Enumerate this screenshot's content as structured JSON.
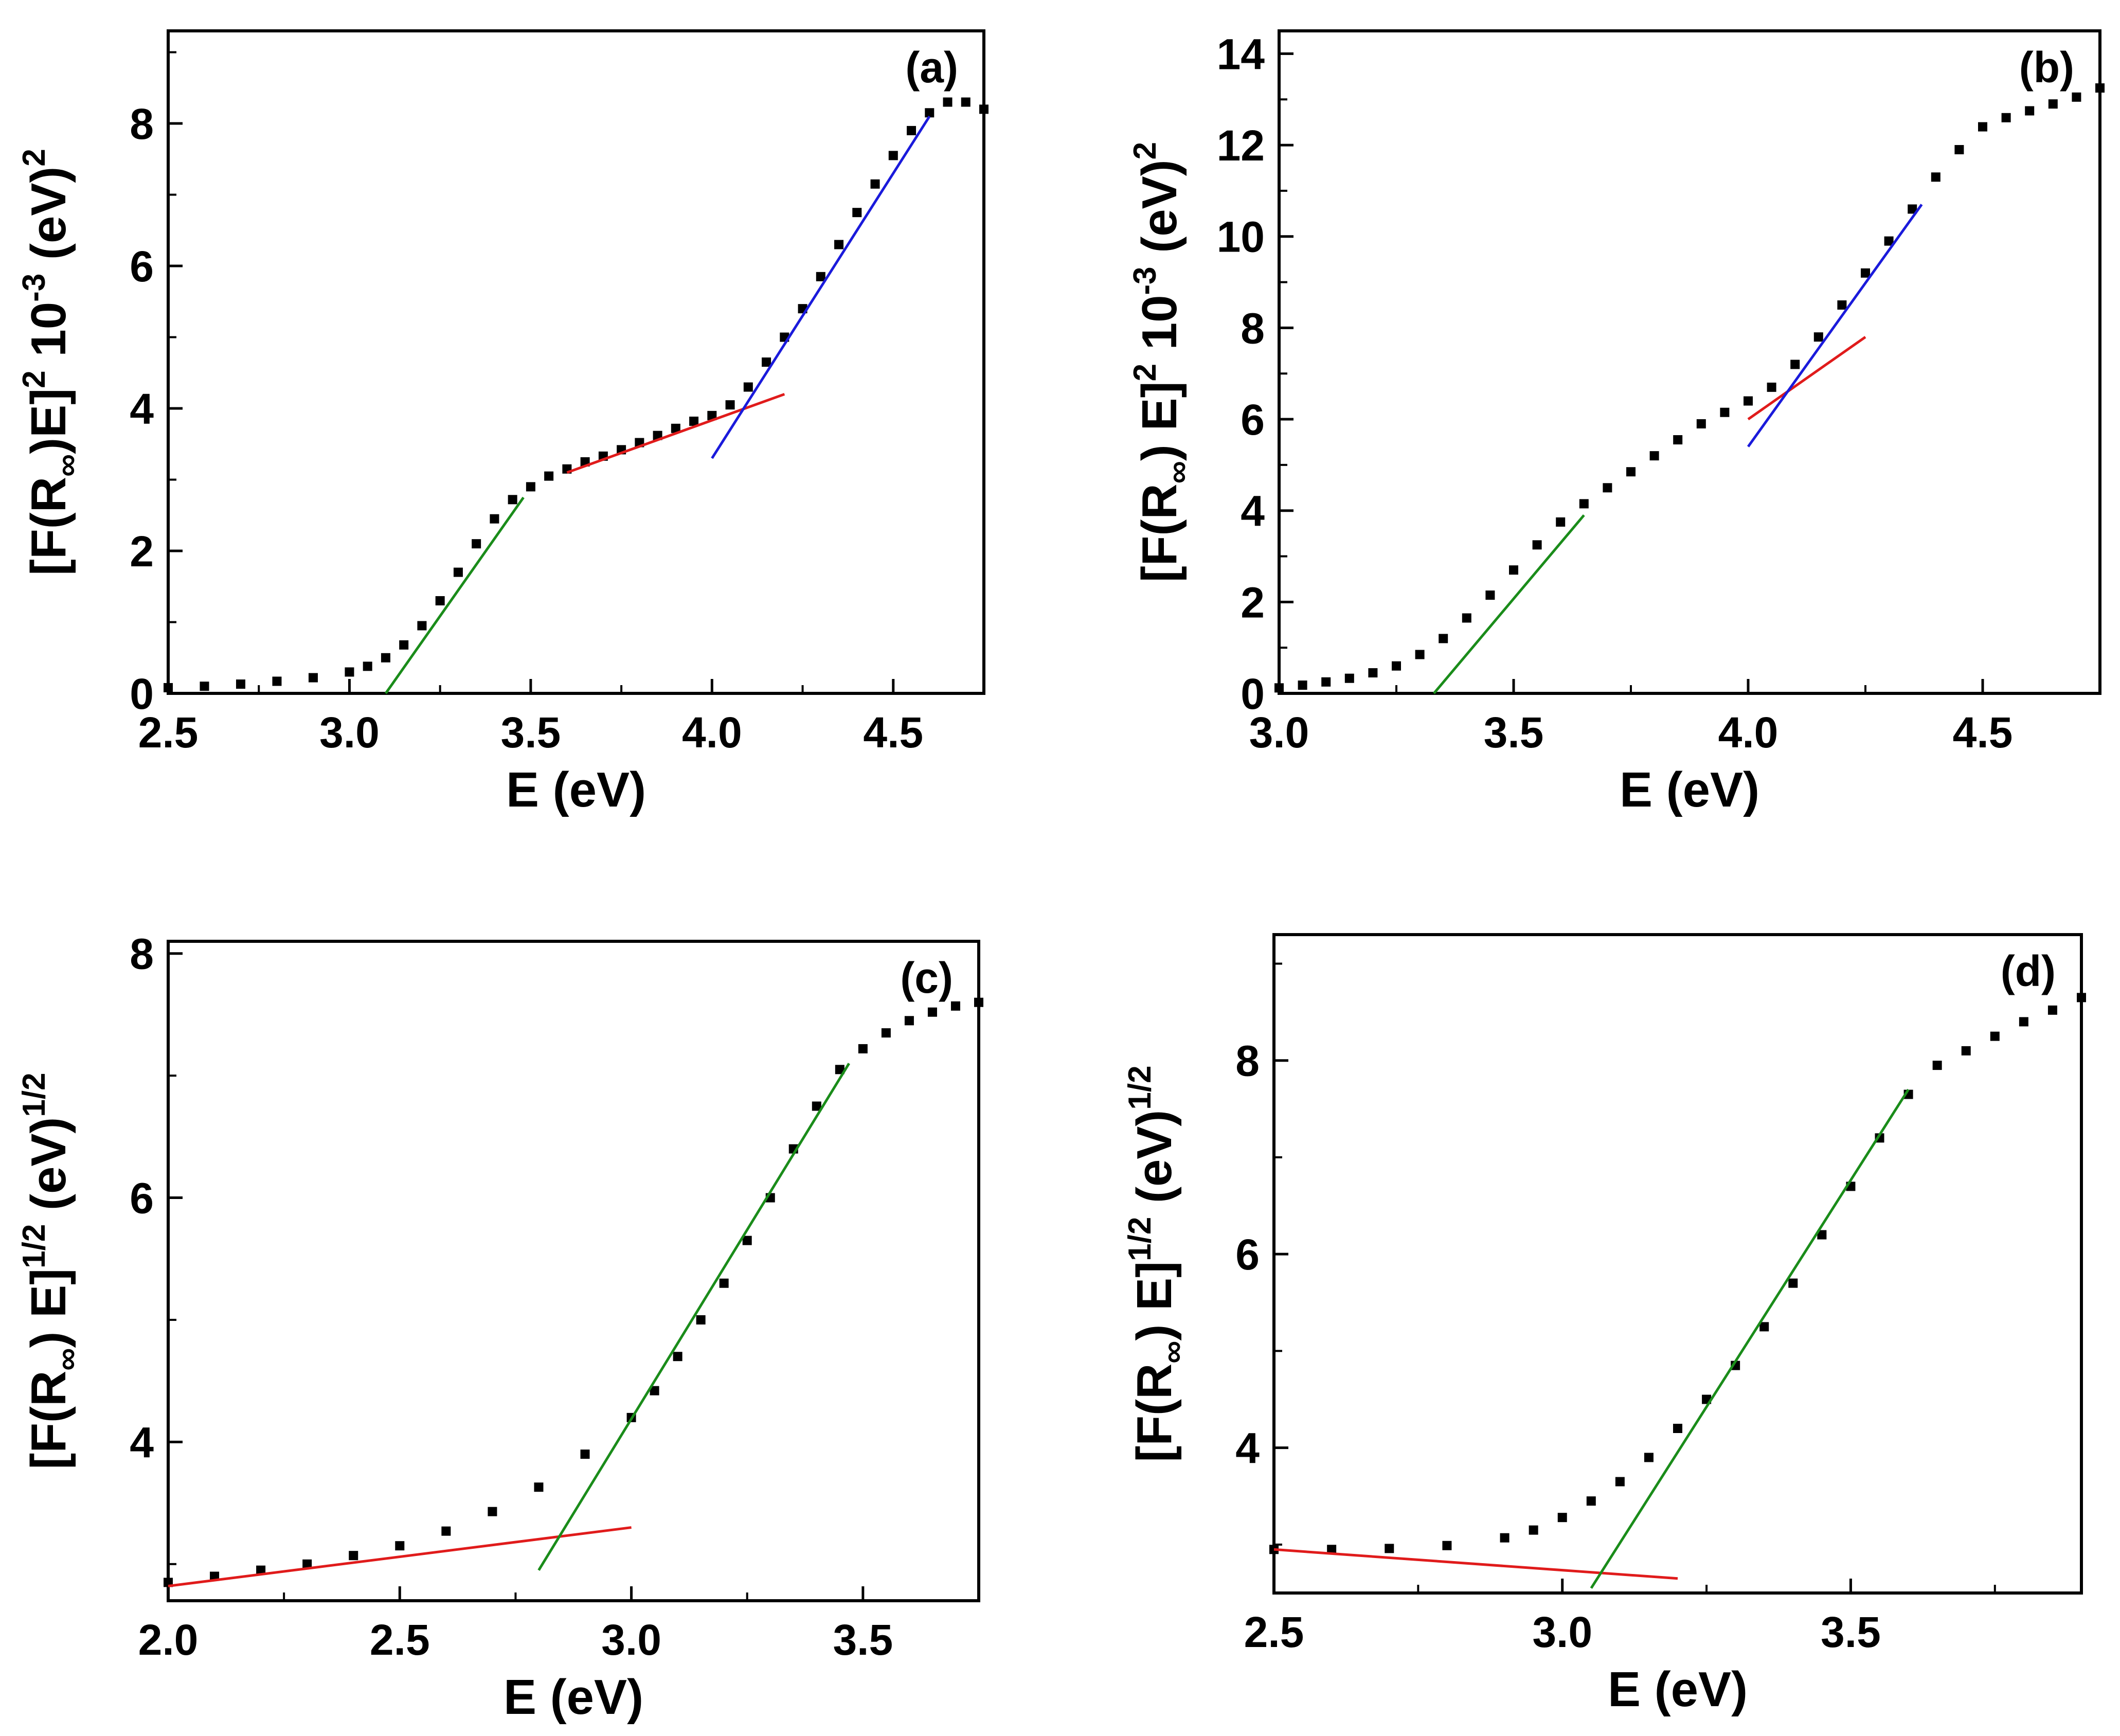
{
  "chart_data": [
    {
      "id": "a",
      "type": "scatter",
      "panel_label": "(a)",
      "xlabel": "E (eV)",
      "ylabel_parts": [
        "[F(R",
        "∞",
        ")E]",
        "2",
        " 10",
        "-3",
        " (eV)",
        "2"
      ],
      "xlim": [
        2.5,
        4.75
      ],
      "ylim": [
        0,
        9.3
      ],
      "xticks": [
        2.5,
        3.0,
        3.5,
        4.0,
        4.5
      ],
      "xtick_labels": [
        "2.5",
        "3.0",
        "3.5",
        "4.0",
        "4.5"
      ],
      "yticks": [
        0,
        2,
        4,
        6,
        8
      ],
      "ytick_labels": [
        "0",
        "2",
        "4",
        "6",
        "8"
      ],
      "series": [
        {
          "name": "data",
          "color": "#000000",
          "x": [
            2.5,
            2.6,
            2.7,
            2.8,
            2.9,
            3.0,
            3.05,
            3.1,
            3.15,
            3.2,
            3.25,
            3.3,
            3.35,
            3.4,
            3.45,
            3.5,
            3.55,
            3.6,
            3.65,
            3.7,
            3.75,
            3.8,
            3.85,
            3.9,
            3.95,
            4.0,
            4.05,
            4.1,
            4.15,
            4.2,
            4.25,
            4.3,
            4.35,
            4.4,
            4.45,
            4.5,
            4.55,
            4.6,
            4.65,
            4.7,
            4.75
          ],
          "y": [
            0.08,
            0.1,
            0.13,
            0.17,
            0.22,
            0.3,
            0.38,
            0.5,
            0.68,
            0.95,
            1.3,
            1.7,
            2.1,
            2.45,
            2.72,
            2.9,
            3.05,
            3.15,
            3.25,
            3.33,
            3.42,
            3.52,
            3.62,
            3.72,
            3.82,
            3.9,
            4.05,
            4.3,
            4.65,
            5.0,
            5.4,
            5.85,
            6.3,
            6.75,
            7.15,
            7.55,
            7.9,
            8.15,
            8.3,
            8.3,
            8.2
          ]
        }
      ],
      "fit_lines": [
        {
          "color": "#1a8c1a",
          "x": [
            3.1,
            3.48
          ],
          "y": [
            0.0,
            2.75
          ]
        },
        {
          "color": "#e01b1b",
          "x": [
            3.6,
            4.2
          ],
          "y": [
            3.1,
            4.2
          ]
        },
        {
          "color": "#1a1adb",
          "x": [
            4.0,
            4.6
          ],
          "y": [
            3.3,
            8.1
          ]
        }
      ]
    },
    {
      "id": "b",
      "type": "scatter",
      "panel_label": "(b)",
      "xlabel": "E (eV)",
      "ylabel_parts": [
        "[F(R",
        "∞",
        ") E]",
        "2",
        " 10",
        "-3",
        " (eV)",
        "2"
      ],
      "xlim": [
        3.0,
        4.75
      ],
      "ylim": [
        0,
        14.5
      ],
      "xticks": [
        3.0,
        3.5,
        4.0,
        4.5
      ],
      "xtick_labels": [
        "3.0",
        "3.5",
        "4.0",
        "4.5"
      ],
      "yticks": [
        0,
        2,
        4,
        6,
        8,
        10,
        12,
        14
      ],
      "ytick_labels": [
        "0",
        "2",
        "4",
        "6",
        "8",
        "10",
        "12",
        "14"
      ],
      "series": [
        {
          "name": "data",
          "color": "#000000",
          "x": [
            3.0,
            3.05,
            3.1,
            3.15,
            3.2,
            3.25,
            3.3,
            3.35,
            3.4,
            3.45,
            3.5,
            3.55,
            3.6,
            3.65,
            3.7,
            3.75,
            3.8,
            3.85,
            3.9,
            3.95,
            4.0,
            4.05,
            4.1,
            4.15,
            4.2,
            4.25,
            4.3,
            4.35,
            4.4,
            4.45,
            4.5,
            4.55,
            4.6,
            4.65,
            4.7,
            4.75
          ],
          "y": [
            0.12,
            0.18,
            0.25,
            0.33,
            0.45,
            0.6,
            0.85,
            1.2,
            1.65,
            2.15,
            2.7,
            3.25,
            3.75,
            4.15,
            4.5,
            4.85,
            5.2,
            5.55,
            5.9,
            6.15,
            6.4,
            6.7,
            7.2,
            7.8,
            8.5,
            9.2,
            9.9,
            10.6,
            11.3,
            11.9,
            12.4,
            12.6,
            12.75,
            12.9,
            13.05,
            13.25
          ]
        }
      ],
      "fit_lines": [
        {
          "color": "#1a8c1a",
          "x": [
            3.33,
            3.65
          ],
          "y": [
            0.0,
            3.9
          ]
        },
        {
          "color": "#e01b1b",
          "x": [
            4.0,
            4.25
          ],
          "y": [
            6.0,
            7.8
          ]
        },
        {
          "color": "#1a1adb",
          "x": [
            4.0,
            4.37
          ],
          "y": [
            5.4,
            10.7
          ]
        }
      ]
    },
    {
      "id": "c",
      "type": "scatter",
      "panel_label": "(c)",
      "xlabel": "E (eV)",
      "ylabel_parts": [
        "[F(R",
        "∞",
        ") E]",
        "1/2",
        " (eV)",
        "1/2"
      ],
      "xlim": [
        2.0,
        3.75
      ],
      "ylim": [
        2.7,
        8.1
      ],
      "xticks": [
        2.0,
        2.5,
        3.0,
        3.5
      ],
      "xtick_labels": [
        "2.0",
        "2.5",
        "3.0",
        "3.5"
      ],
      "yticks": [
        4,
        6,
        8
      ],
      "ytick_labels": [
        "4",
        "6",
        "8"
      ],
      "series": [
        {
          "name": "data",
          "color": "#000000",
          "x": [
            2.0,
            2.1,
            2.2,
            2.3,
            2.4,
            2.5,
            2.6,
            2.7,
            2.8,
            2.9,
            3.0,
            3.05,
            3.1,
            3.15,
            3.2,
            3.25,
            3.3,
            3.35,
            3.4,
            3.45,
            3.5,
            3.55,
            3.6,
            3.65,
            3.7,
            3.75
          ],
          "y": [
            2.85,
            2.9,
            2.95,
            3.0,
            3.07,
            3.15,
            3.27,
            3.43,
            3.63,
            3.9,
            4.2,
            4.42,
            4.7,
            5.0,
            5.3,
            5.65,
            6.0,
            6.4,
            6.75,
            7.05,
            7.22,
            7.35,
            7.45,
            7.52,
            7.57,
            7.6
          ]
        }
      ],
      "fit_lines": [
        {
          "color": "#e01b1b",
          "x": [
            2.0,
            3.0
          ],
          "y": [
            2.82,
            3.3
          ]
        },
        {
          "color": "#1a8c1a",
          "x": [
            2.8,
            3.47
          ],
          "y": [
            2.95,
            7.1
          ]
        }
      ]
    },
    {
      "id": "d",
      "type": "scatter",
      "panel_label": "(d)",
      "xlabel": "E (eV)",
      "ylabel_parts": [
        "[F(R",
        "∞",
        ") E]",
        "1/2",
        " (eV)",
        "1/2"
      ],
      "xlim": [
        2.5,
        3.9
      ],
      "ylim": [
        2.5,
        9.3
      ],
      "xticks": [
        2.5,
        3.0,
        3.5
      ],
      "xtick_labels": [
        "2.5",
        "3.0",
        "3.5"
      ],
      "yticks": [
        4,
        6,
        8
      ],
      "ytick_labels": [
        "4",
        "6",
        "8"
      ],
      "series": [
        {
          "name": "data",
          "color": "#000000",
          "x": [
            2.5,
            2.6,
            2.7,
            2.8,
            2.9,
            2.95,
            3.0,
            3.05,
            3.1,
            3.15,
            3.2,
            3.25,
            3.3,
            3.35,
            3.4,
            3.45,
            3.5,
            3.55,
            3.6,
            3.65,
            3.7,
            3.75,
            3.8,
            3.85,
            3.9
          ],
          "y": [
            2.95,
            2.95,
            2.96,
            2.99,
            3.07,
            3.15,
            3.28,
            3.45,
            3.65,
            3.9,
            4.2,
            4.5,
            4.85,
            5.25,
            5.7,
            6.2,
            6.7,
            7.2,
            7.65,
            7.95,
            8.1,
            8.25,
            8.4,
            8.52,
            8.65
          ]
        }
      ],
      "fit_lines": [
        {
          "color": "#e01b1b",
          "x": [
            2.5,
            3.2
          ],
          "y": [
            2.95,
            2.65
          ]
        },
        {
          "color": "#1a8c1a",
          "x": [
            3.05,
            3.6
          ],
          "y": [
            2.55,
            7.7
          ]
        }
      ]
    }
  ]
}
